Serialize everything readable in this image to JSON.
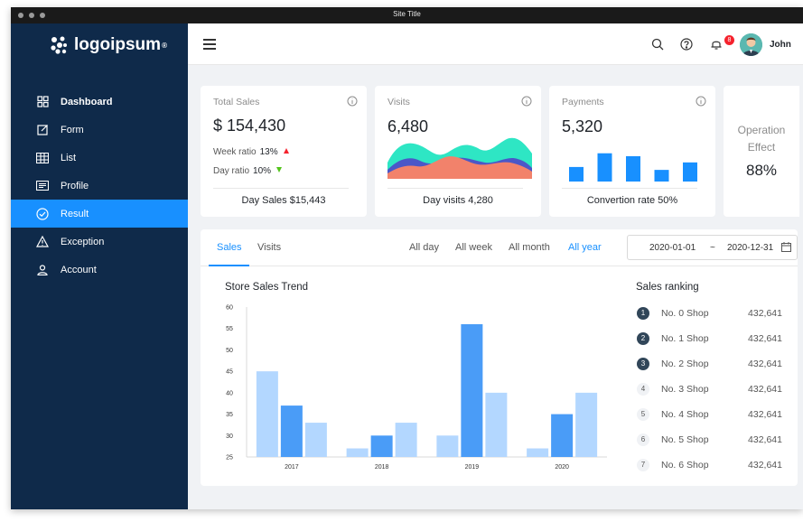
{
  "window": {
    "title": "Site Title"
  },
  "logo": {
    "text": "logoipsum",
    "mark": "®"
  },
  "sidebar": {
    "items": [
      {
        "label": "Dashboard",
        "icon": "dashboard-icon",
        "bold": true,
        "active": false
      },
      {
        "label": "Form",
        "icon": "form-edit-icon",
        "active": false
      },
      {
        "label": "List",
        "icon": "table-list-icon",
        "active": false
      },
      {
        "label": "Profile",
        "icon": "profile-card-icon",
        "active": false
      },
      {
        "label": "Result",
        "icon": "check-circle-icon",
        "active": true
      },
      {
        "label": "Exception",
        "icon": "warning-icon",
        "active": false
      },
      {
        "label": "Account",
        "icon": "user-icon",
        "active": false
      }
    ]
  },
  "header": {
    "notifications_count": "8",
    "username": "John"
  },
  "cards": {
    "total_sales": {
      "title": "Total Sales",
      "value": "$ 154,430",
      "week_label": "Week ratio",
      "week_value": "13%",
      "day_label": "Day ratio",
      "day_value": "10%",
      "footer": "Day Sales $15,443"
    },
    "visits": {
      "title": "Visits",
      "value": "6,480",
      "footer": "Day visits 4,280"
    },
    "payments": {
      "title": "Payments",
      "value": "5,320",
      "footer": "Convertion rate 50%",
      "bars": [
        0.35,
        0.68,
        0.61,
        0.28,
        0.46
      ]
    },
    "operation": {
      "label_line1": "Operation",
      "label_line2": "Effect",
      "value": "88%"
    }
  },
  "panel": {
    "tabs": [
      "Sales",
      "Visits"
    ],
    "active_tab": 0,
    "filters": [
      "All day",
      "All week",
      "All month",
      "All year"
    ],
    "active_filter": 3,
    "date_start": "2020-01-01",
    "date_sep": "~",
    "date_end": "2020-12-31"
  },
  "chart_data": {
    "type": "bar",
    "title": "Store Sales Trend",
    "categories": [
      "2017",
      "2018",
      "2019",
      "2020"
    ],
    "series": [
      {
        "values": [
          45,
          27,
          30,
          27
        ],
        "color": "#b3d7ff"
      },
      {
        "values": [
          37,
          30,
          56,
          35
        ],
        "color": "#4a9cf7"
      },
      {
        "values": [
          33,
          33,
          40,
          40
        ],
        "color": "#b3d7ff"
      }
    ],
    "ylim": [
      25,
      60
    ],
    "yticks": [
      "60",
      "55",
      "50",
      "45",
      "40",
      "35",
      "30",
      "25"
    ],
    "grid": false
  },
  "ranking": {
    "title": "Sales ranking",
    "items": [
      {
        "rank": "1",
        "name": "No. 0 Shop",
        "value": "432,641"
      },
      {
        "rank": "2",
        "name": "No. 1 Shop",
        "value": "432,641"
      },
      {
        "rank": "3",
        "name": "No. 2 Shop",
        "value": "432,641"
      },
      {
        "rank": "4",
        "name": "No. 3 Shop",
        "value": "432,641"
      },
      {
        "rank": "5",
        "name": "No. 4 Shop",
        "value": "432,641"
      },
      {
        "rank": "6",
        "name": "No. 5 Shop",
        "value": "432,641"
      },
      {
        "rank": "7",
        "name": "No. 6 Shop",
        "value": "432,641"
      }
    ]
  },
  "colors": {
    "sidebar_bg": "#0f2a4a",
    "accent": "#1890ff",
    "up": "#f5222d",
    "down": "#52c41a"
  }
}
